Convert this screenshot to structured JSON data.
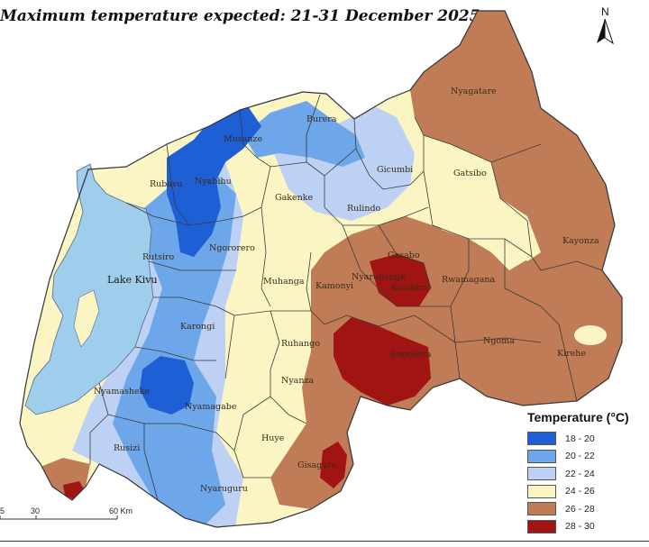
{
  "title": "Maximum temperature expected: 21-31 December 2025",
  "legend": {
    "title": "Temperature (°C)",
    "classes": [
      {
        "label": "18 - 20",
        "color": "#1f5fd6"
      },
      {
        "label": "20 - 22",
        "color": "#6ea6ea"
      },
      {
        "label": "22 - 24",
        "color": "#bcd1f4"
      },
      {
        "label": "24 - 26",
        "color": "#fbf5c4"
      },
      {
        "label": "26 - 28",
        "color": "#c07c56"
      },
      {
        "label": "28 - 30",
        "color": "#a01414"
      }
    ]
  },
  "lake": {
    "label": "Lake Kivu",
    "color": "#9fcdec"
  },
  "north_arrow": {
    "label": "N",
    "icon": "north-arrow-icon"
  },
  "scale_bar": {
    "ticks": [
      "5",
      "30",
      "60 Km"
    ]
  },
  "districts": [
    {
      "name": "Nyagatare",
      "class": "26 - 28"
    },
    {
      "name": "Gatsibo",
      "class": "24 - 26"
    },
    {
      "name": "Kayonza",
      "class": "26 - 28"
    },
    {
      "name": "Burera",
      "class": "20 - 22"
    },
    {
      "name": "Musanze",
      "class": "18 - 20"
    },
    {
      "name": "Gicumbi",
      "class": "22 - 24"
    },
    {
      "name": "Rubavu",
      "class": "24 - 26"
    },
    {
      "name": "Nyabihu",
      "class": "18 - 20"
    },
    {
      "name": "Gakenke",
      "class": "24 - 26"
    },
    {
      "name": "Rulindo",
      "class": "22 - 24"
    },
    {
      "name": "Gasabo",
      "class": "26 - 28"
    },
    {
      "name": "Ngororero",
      "class": "20 - 22"
    },
    {
      "name": "Rutsiro",
      "class": "20 - 22"
    },
    {
      "name": "Nyarugenge",
      "class": "26 - 28"
    },
    {
      "name": "Kicukiro",
      "class": "28 - 30"
    },
    {
      "name": "Rwamagana",
      "class": "26 - 28"
    },
    {
      "name": "Muhanga",
      "class": "24 - 26"
    },
    {
      "name": "Kamonyi",
      "class": "26 - 28"
    },
    {
      "name": "Karongi",
      "class": "20 - 22"
    },
    {
      "name": "Ruhango",
      "class": "24 - 26"
    },
    {
      "name": "Ngoma",
      "class": "26 - 28"
    },
    {
      "name": "Bugesera",
      "class": "28 - 30"
    },
    {
      "name": "Kirehe",
      "class": "26 - 28"
    },
    {
      "name": "Nyanza",
      "class": "24 - 26"
    },
    {
      "name": "Nyamasheke",
      "class": "20 - 22"
    },
    {
      "name": "Nyamagabe",
      "class": "20 - 22"
    },
    {
      "name": "Huye",
      "class": "24 - 26"
    },
    {
      "name": "Rusizi",
      "class": "22 - 24"
    },
    {
      "name": "Gisagara",
      "class": "26 - 28"
    },
    {
      "name": "Nyaruguru",
      "class": "20 - 22"
    }
  ]
}
